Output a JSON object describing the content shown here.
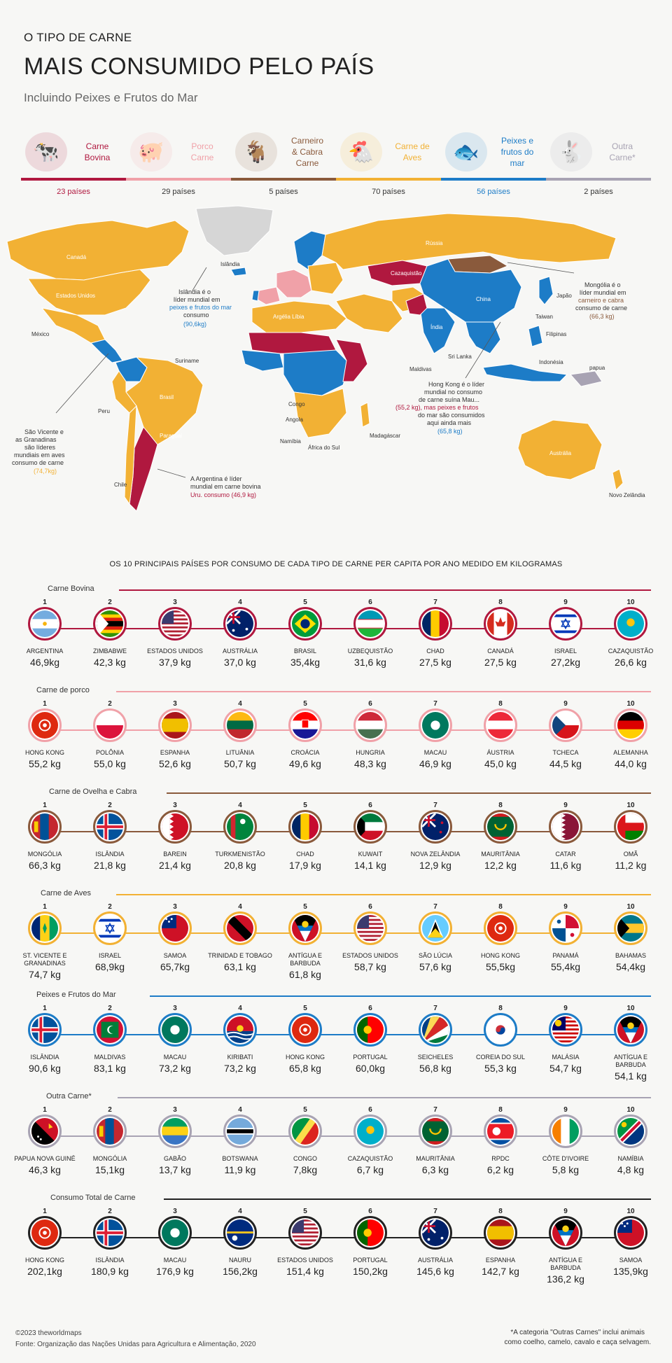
{
  "header": {
    "title_small": "O TIPO DE CARNE",
    "title_big": "MAIS CONSUMIDO PELO PAÍS",
    "subtitle": "Incluindo Peixes e Frutos do Mar"
  },
  "colors": {
    "beef": "#b0183f",
    "pork": "#f0a1a8",
    "lamb": "#8a5a3c",
    "poultry": "#f2b134",
    "fish": "#1d7cc7",
    "other": "#a8a3b3",
    "nodata": "#d6d6d6"
  },
  "categories": [
    {
      "line1": "Carne",
      "line2": "Bovina",
      "count": "23 países",
      "icon": "cow-icon",
      "color": "#b0183f"
    },
    {
      "line1": "Porco",
      "line2": "Carne",
      "count": "29 países",
      "icon": "pig-icon",
      "color": "#f0a1a8"
    },
    {
      "line1": "Carneiro",
      "line2": "& Cabra Carne",
      "count": "5 países",
      "icon": "goat-icon",
      "color": "#8a5a3c"
    },
    {
      "line1": "Carne de",
      "line2": "Aves",
      "count": "70 países",
      "icon": "chicken-icon",
      "color": "#f2b134"
    },
    {
      "line1": "Peixes e",
      "line2": "frutos do mar",
      "count": "56 países",
      "icon": "fish-icon",
      "color": "#1d7cc7"
    },
    {
      "line1": "Outra",
      "line2": "Carne*",
      "count": "2 países",
      "icon": "rabbit-icon",
      "color": "#a8a3b3"
    }
  ],
  "map": {
    "labels": {
      "canada": "Canadá",
      "usa": "Estados Unidos",
      "mexico": "México",
      "brazil": "Brasil",
      "peru": "Peru",
      "chile": "Chile",
      "paraguay": "Paraguai",
      "suriname": "Suriname",
      "russia": "Rússia",
      "china": "China",
      "india": "Índia",
      "kazakhstan": "Cazaquistão",
      "mongolia": "Mongólia",
      "australia": "Austrália",
      "algeria": "Argélia Líbia",
      "congo": "Congo",
      "angola": "Angola",
      "namibia": "Namíbia",
      "south_africa": "África do Sul",
      "madagascar": "Madagáscar",
      "iceland": "Islândia",
      "nz": "Novo Zelândia",
      "japan": "Japão",
      "indonesia": "Indonésia",
      "philippines": "Filipinas",
      "sri_lanka": "Sri Lanka",
      "maldives": "Maldivas",
      "taiwan": "Taiwan",
      "greenland": "",
      "papua": "papua"
    },
    "callouts": {
      "iceland": [
        "Islândia é o",
        "líder mundial em",
        "peixes e frutos do mar",
        "consumo",
        "(90,6kg)"
      ],
      "mongolia": [
        "Mongólia é o",
        "líder mundial em",
        "carneiro e cabra",
        "consumo de carne",
        "(66,3 kg)"
      ],
      "hong_kong": [
        "Hong Kong é o líder",
        "mundial no consumo",
        "de carne suína Mau...",
        "(55,2 kg), mas peixes e frutos",
        "do mar são consumidos",
        "aqui ainda mais",
        "(65,8 kg)"
      ],
      "argentina": [
        "A Argentina é líder",
        "mundial em carne bovina",
        "Uru. consumo (46,9 kg)"
      ],
      "st_vincent": [
        "São Vicente e",
        "as Granadinas",
        "são líderes",
        "mundiais em aves",
        "consumo de carne",
        "(74,7kg)"
      ]
    }
  },
  "top10_heading": "OS 10 PRINCIPAIS PAÍSES POR CONSUMO DE CADA TIPO DE CARNE PER CAPITA POR ANO MEDIDO EM KILOGRAMAS",
  "sections": [
    {
      "title": "Carne Bovina",
      "color": "#b0183f",
      "items": [
        {
          "rank": "1",
          "country": "ARGENTINA",
          "value": "46,9kg",
          "flag": "argentina-flag-icon"
        },
        {
          "rank": "2",
          "country": "ZIMBABWE",
          "value": "42,3 kg",
          "flag": "zimbabwe-flag-icon"
        },
        {
          "rank": "3",
          "country": "ESTADOS UNIDOS",
          "value": "37,9 kg",
          "flag": "usa-flag-icon"
        },
        {
          "rank": "4",
          "country": "AUSTRÁLIA",
          "value": "37,0 kg",
          "flag": "australia-flag-icon"
        },
        {
          "rank": "5",
          "country": "BRASIL",
          "value": "35,4kg",
          "flag": "brazil-flag-icon"
        },
        {
          "rank": "6",
          "country": "UZBEQUISTÃO",
          "value": "31,6 kg",
          "flag": "uzbekistan-flag-icon"
        },
        {
          "rank": "7",
          "country": "CHAD",
          "value": "27,5 kg",
          "flag": "chad-flag-icon"
        },
        {
          "rank": "8",
          "country": "CANADÁ",
          "value": "27,5 kg",
          "flag": "canada-flag-icon"
        },
        {
          "rank": "9",
          "country": "ISRAEL",
          "value": "27,2kg",
          "flag": "israel-flag-icon"
        },
        {
          "rank": "10",
          "country": "CAZAQUISTÃO",
          "value": "26,6 kg",
          "flag": "kazakhstan-flag-icon"
        }
      ]
    },
    {
      "title": "Carne de porco",
      "color": "#f0a1a8",
      "items": [
        {
          "rank": "1",
          "country": "HONG KONG",
          "value": "55,2 kg",
          "flag": "hongkong-flag-icon"
        },
        {
          "rank": "2",
          "country": "POLÔNIA",
          "value": "55,0 kg",
          "flag": "poland-flag-icon"
        },
        {
          "rank": "3",
          "country": "ESPANHA",
          "value": "52,6 kg",
          "flag": "spain-flag-icon"
        },
        {
          "rank": "4",
          "country": "LITUÂNIA",
          "value": "50,7 kg",
          "flag": "lithuania-flag-icon"
        },
        {
          "rank": "5",
          "country": "CROÁCIA",
          "value": "49,6 kg",
          "flag": "croatia-flag-icon"
        },
        {
          "rank": "6",
          "country": "HUNGRIA",
          "value": "48,3 kg",
          "flag": "hungary-flag-icon"
        },
        {
          "rank": "7",
          "country": "MACAU",
          "value": "46,9 kg",
          "flag": "macau-flag-icon"
        },
        {
          "rank": "8",
          "country": "ÁUSTRIA",
          "value": "45,0 kg",
          "flag": "austria-flag-icon"
        },
        {
          "rank": "9",
          "country": "TCHECA",
          "value": "44,5 kg",
          "flag": "czechia-flag-icon"
        },
        {
          "rank": "10",
          "country": "ALEMANHA",
          "value": "44,0 kg",
          "flag": "germany-flag-icon"
        }
      ]
    },
    {
      "title": "Carne de Ovelha e Cabra",
      "color": "#8a5a3c",
      "items": [
        {
          "rank": "1",
          "country": "MONGÓLIA",
          "value": "66,3 kg",
          "flag": "mongolia-flag-icon"
        },
        {
          "rank": "2",
          "country": "ISLÂNDIA",
          "value": "21,8 kg",
          "flag": "iceland-flag-icon"
        },
        {
          "rank": "3",
          "country": "BAREIN",
          "value": "21,4 kg",
          "flag": "bahrain-flag-icon"
        },
        {
          "rank": "4",
          "country": "TURKMENISTÃO",
          "value": "20,8 kg",
          "flag": "turkmenistan-flag-icon"
        },
        {
          "rank": "5",
          "country": "CHAD",
          "value": "17,9 kg",
          "flag": "chad-flag-icon"
        },
        {
          "rank": "6",
          "country": "KUWAIT",
          "value": "14,1 kg",
          "flag": "kuwait-flag-icon"
        },
        {
          "rank": "7",
          "country": "NOVA ZELÂNDIA",
          "value": "12,9 kg",
          "flag": "newzealand-flag-icon"
        },
        {
          "rank": "8",
          "country": "MAURITÂNIA",
          "value": "12,2 kg",
          "flag": "mauritania-flag-icon"
        },
        {
          "rank": "9",
          "country": "CATAR",
          "value": "11,6 kg",
          "flag": "qatar-flag-icon"
        },
        {
          "rank": "10",
          "country": "OMÃ",
          "value": "11,2 kg",
          "flag": "oman-flag-icon"
        }
      ]
    },
    {
      "title": "Carne de Aves",
      "color": "#f2b134",
      "items": [
        {
          "rank": "1",
          "country": "ST. VICENTE E GRANADINAS",
          "value": "74,7 kg",
          "flag": "stvincent-flag-icon"
        },
        {
          "rank": "2",
          "country": "ISRAEL",
          "value": "68,9kg",
          "flag": "israel-flag-icon"
        },
        {
          "rank": "3",
          "country": "SAMOA",
          "value": "65,7kg",
          "flag": "samoa-flag-icon"
        },
        {
          "rank": "4",
          "country": "TRINIDAD E TOBAGO",
          "value": "63,1 kg",
          "flag": "trinidad-flag-icon"
        },
        {
          "rank": "5",
          "country": "ANTÍGUA E BARBUDA",
          "value": "61,8 kg",
          "flag": "antigua-flag-icon"
        },
        {
          "rank": "6",
          "country": "ESTADOS UNIDOS",
          "value": "58,7 kg",
          "flag": "usa-flag-icon"
        },
        {
          "rank": "7",
          "country": "SÃO LÚCIA",
          "value": "57,6 kg",
          "flag": "stlucia-flag-icon"
        },
        {
          "rank": "8",
          "country": "HONG KONG",
          "value": "55,5kg",
          "flag": "hongkong-flag-icon"
        },
        {
          "rank": "9",
          "country": "PANAMÁ",
          "value": "55,4kg",
          "flag": "panama-flag-icon"
        },
        {
          "rank": "10",
          "country": "BAHAMAS",
          "value": "54,4kg",
          "flag": "bahamas-flag-icon"
        }
      ]
    },
    {
      "title": "Peixes e Frutos do Mar",
      "color": "#1d7cc7",
      "items": [
        {
          "rank": "1",
          "country": "ISLÂNDIA",
          "value": "90,6 kg",
          "flag": "iceland-flag-icon"
        },
        {
          "rank": "2",
          "country": "MALDIVAS",
          "value": "83,1 kg",
          "flag": "maldives-flag-icon"
        },
        {
          "rank": "3",
          "country": "MACAU",
          "value": "73,2 kg",
          "flag": "macau-flag-icon"
        },
        {
          "rank": "4",
          "country": "KIRIBATI",
          "value": "73,2 kg",
          "flag": "kiribati-flag-icon"
        },
        {
          "rank": "5",
          "country": "HONG KONG",
          "value": "65,8 kg",
          "flag": "hongkong-flag-icon"
        },
        {
          "rank": "6",
          "country": "PORTUGAL",
          "value": "60,0kg",
          "flag": "portugal-flag-icon"
        },
        {
          "rank": "7",
          "country": "SEICHELES",
          "value": "56,8 kg",
          "flag": "seychelles-flag-icon"
        },
        {
          "rank": "8",
          "country": "COREIA DO SUL",
          "value": "55,3 kg",
          "flag": "southkorea-flag-icon"
        },
        {
          "rank": "9",
          "country": "MALÁSIA",
          "value": "54,7 kg",
          "flag": "malaysia-flag-icon"
        },
        {
          "rank": "10",
          "country": "ANTÍGUA E BARBUDA",
          "value": "54,1 kg",
          "flag": "antigua-flag-icon"
        }
      ]
    },
    {
      "title": "Outra Carne*",
      "color": "#a8a3b3",
      "items": [
        {
          "rank": "1",
          "country": "PAPUA NOVA GUINÉ",
          "value": "46,3 kg",
          "flag": "papua-flag-icon"
        },
        {
          "rank": "2",
          "country": "MONGÓLIA",
          "value": "15,1kg",
          "flag": "mongolia-flag-icon"
        },
        {
          "rank": "3",
          "country": "GABÃO",
          "value": "13,7 kg",
          "flag": "gabon-flag-icon"
        },
        {
          "rank": "4",
          "country": "BOTSWANA",
          "value": "11,9 kg",
          "flag": "botswana-flag-icon"
        },
        {
          "rank": "5",
          "country": "CONGO",
          "value": "7,8kg",
          "flag": "congo-flag-icon"
        },
        {
          "rank": "6",
          "country": "CAZAQUISTÃO",
          "value": "6,7 kg",
          "flag": "kazakhstan-flag-icon"
        },
        {
          "rank": "7",
          "country": "MAURITÂNIA",
          "value": "6,3 kg",
          "flag": "mauritania-flag-icon"
        },
        {
          "rank": "8",
          "country": "RPDC",
          "value": "6,2 kg",
          "flag": "northkorea-flag-icon"
        },
        {
          "rank": "9",
          "country": "CÔTE D'IVOIRE",
          "value": "5,8 kg",
          "flag": "ivorycoast-flag-icon"
        },
        {
          "rank": "10",
          "country": "NAMÍBIA",
          "value": "4,8 kg",
          "flag": "namibia-flag-icon"
        }
      ]
    },
    {
      "title": "Consumo Total de Carne",
      "color": "#222222",
      "items": [
        {
          "rank": "1",
          "country": "HONG KONG",
          "value": "202,1kg",
          "flag": "hongkong-flag-icon"
        },
        {
          "rank": "2",
          "country": "ISLÂNDIA",
          "value": "180,9 kg",
          "flag": "iceland-flag-icon"
        },
        {
          "rank": "3",
          "country": "MACAU",
          "value": "176,9 kg",
          "flag": "macau-flag-icon"
        },
        {
          "rank": "4",
          "country": "NAURU",
          "value": "156,2kg",
          "flag": "nauru-flag-icon"
        },
        {
          "rank": "5",
          "country": "ESTADOS UNIDOS",
          "value": "151,4 kg",
          "flag": "usa-flag-icon"
        },
        {
          "rank": "6",
          "country": "PORTUGAL",
          "value": "150,2kg",
          "flag": "portugal-flag-icon"
        },
        {
          "rank": "7",
          "country": "AUSTRÁLIA",
          "value": "145,6 kg",
          "flag": "australia-flag-icon"
        },
        {
          "rank": "8",
          "country": "ESPANHA",
          "value": "142,7 kg",
          "flag": "spain-flag-icon"
        },
        {
          "rank": "9",
          "country": "ANTÍGUA E BARBUDA",
          "value": "136,2 kg",
          "flag": "antigua-flag-icon"
        },
        {
          "rank": "10",
          "country": "SAMOA",
          "value": "135,9kg",
          "flag": "samoa-flag-icon"
        }
      ]
    }
  ],
  "footer": {
    "copyright": "©2023 theworldmaps",
    "source": "Fonte: Organização das Nações Unidas para Agricultura e Alimentação, 2020",
    "note_line1": "*A categoria \"Outras Carnes\" inclui animais",
    "note_line2": "como coelho, camelo, cavalo e caça selvagem."
  }
}
